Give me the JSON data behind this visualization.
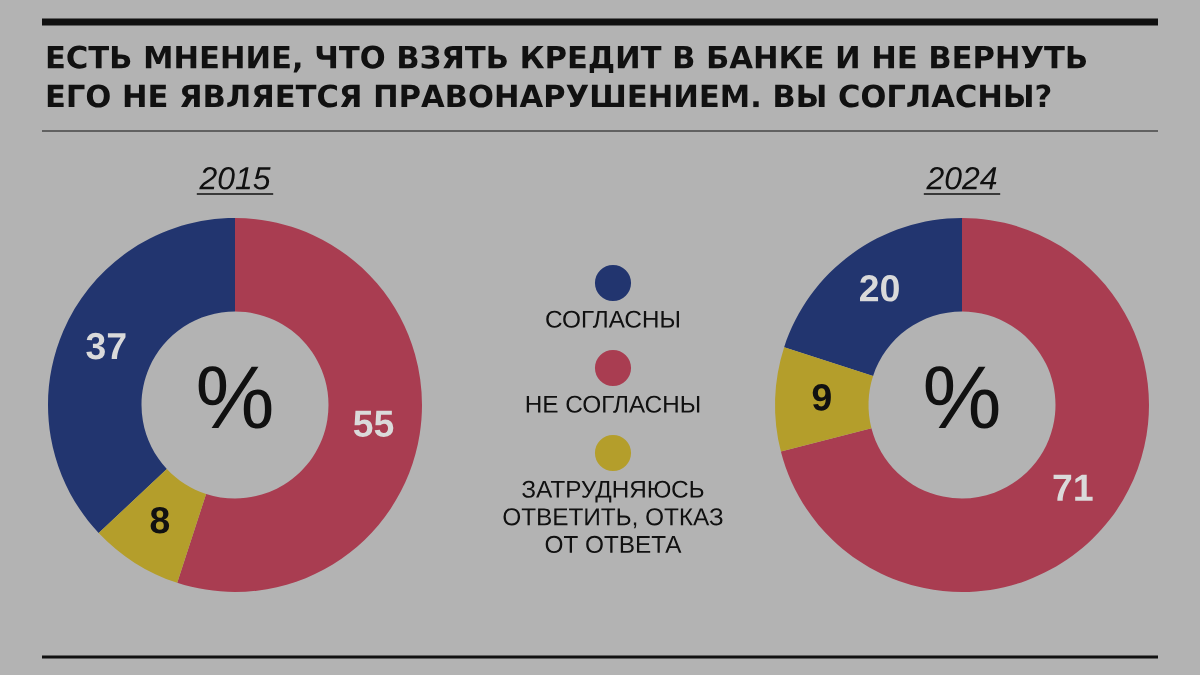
{
  "chart_data": [
    {
      "type": "donut",
      "title": "ЕСТЬ МНЕНИЕ, ЧТО ВЗЯТЬ КРЕДИТ В БАНКЕ И НЕ ВЕРНУТЬ ЕГО НЕ ЯВЛЯЕТСЯ ПРАВОНАРУШЕНИЕМ. ВЫ СОГЛАСНЫ?",
      "subtitle": "2015",
      "categories": [
        "СОГЛАСНЫ",
        "НЕ СОГЛАСНЫ",
        "ЗАТРУДНЯЮСЬ ОТВЕТИТЬ, ОТКАЗ ОТ ОТВЕТА"
      ],
      "values": [
        37,
        55,
        8
      ],
      "colors": [
        "#22356f",
        "#a93d51",
        "#b49e2b"
      ],
      "data_labels": true,
      "legend": "right",
      "annotations": [
        "%"
      ]
    },
    {
      "type": "donut",
      "subtitle": "2024",
      "categories": [
        null,
        null,
        null
      ],
      "values": [
        20,
        71,
        9
      ],
      "colors": [
        "#22356f",
        "#a93d51",
        "#b49e2b"
      ],
      "data_labels": true,
      "annotations": [
        "%"
      ]
    }
  ]
}
